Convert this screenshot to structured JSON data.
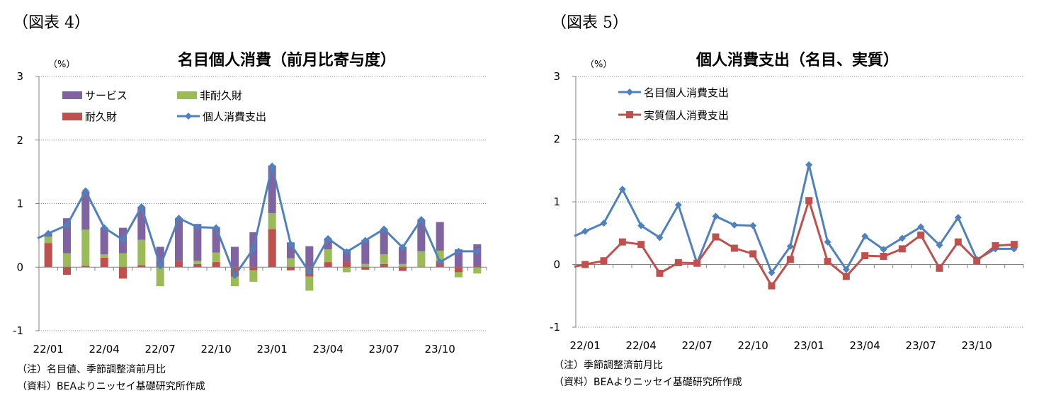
{
  "figures": [
    {
      "figure_label": "（図表 4）",
      "notes": [
        "（注）名目値、季節調整済前月比",
        "（資料）BEAよりニッセイ基礎研究所作成"
      ]
    },
    {
      "figure_label": "（図表 5）",
      "notes": [
        "（注）季節調整済前月比",
        "（資料）BEAよりニッセイ基礎研究所作成"
      ]
    }
  ],
  "chart_data": [
    {
      "type": "bar",
      "stacked": true,
      "title": "名目個人消費（前月比寄与度）",
      "ylabel": "（%）",
      "ylim": [
        -1,
        3
      ],
      "yticks": [
        -1,
        0,
        1,
        2,
        3
      ],
      "grid": true,
      "legend_position": "top-left",
      "x": [
        "22/01",
        "22/02",
        "22/03",
        "22/04",
        "22/05",
        "22/06",
        "22/07",
        "22/08",
        "22/09",
        "22/10",
        "22/11",
        "22/12",
        "23/01",
        "23/02",
        "23/03",
        "23/04",
        "23/05",
        "23/06",
        "23/07",
        "23/08",
        "23/09",
        "23/10",
        "23/11",
        "23/12"
      ],
      "xtick_labels": [
        "22/01",
        "22/04",
        "22/07",
        "22/10",
        "23/01",
        "23/04",
        "23/07",
        "23/10"
      ],
      "series": [
        {
          "name": "耐久財",
          "type": "bar",
          "color": "#C0504D",
          "values": [
            0.38,
            -0.12,
            0.02,
            0.15,
            -0.18,
            0.03,
            0.0,
            0.1,
            0.05,
            0.08,
            -0.15,
            -0.05,
            0.6,
            -0.05,
            -0.15,
            0.08,
            0.08,
            -0.04,
            0.05,
            -0.06,
            0.0,
            0.1,
            -0.08,
            0.02
          ]
        },
        {
          "name": "非耐久財",
          "type": "bar",
          "color": "#9BBB59",
          "values": [
            0.1,
            0.22,
            0.57,
            0.05,
            0.22,
            0.4,
            -0.3,
            0.0,
            0.05,
            0.15,
            -0.15,
            -0.18,
            0.25,
            0.14,
            -0.22,
            0.2,
            -0.08,
            0.05,
            0.15,
            0.05,
            0.25,
            0.16,
            -0.08,
            -0.1
          ]
        },
        {
          "name": "サービス",
          "type": "bar",
          "color": "#8064A2",
          "values": [
            0.05,
            0.55,
            0.6,
            0.42,
            0.4,
            0.52,
            0.32,
            0.67,
            0.58,
            0.4,
            0.32,
            0.55,
            0.75,
            0.25,
            0.33,
            0.17,
            0.2,
            0.38,
            0.4,
            0.27,
            0.5,
            0.45,
            0.28,
            0.34
          ]
        },
        {
          "name": "個人消費支出",
          "type": "line",
          "color": "#4F81BD",
          "values": [
            0.53,
            0.66,
            1.2,
            0.62,
            0.43,
            0.95,
            0.02,
            0.77,
            0.63,
            0.62,
            -0.13,
            0.29,
            1.59,
            0.36,
            -0.08,
            0.45,
            0.24,
            0.42,
            0.6,
            0.31,
            0.75,
            0.08,
            0.25,
            0.25
          ]
        }
      ]
    },
    {
      "type": "line",
      "title": "個人消費支出（名目、実質）",
      "ylabel": "（%）",
      "ylim": [
        -1,
        3
      ],
      "yticks": [
        -1,
        0,
        1,
        2,
        3
      ],
      "grid": true,
      "legend_position": "top-left",
      "x": [
        "22/01",
        "22/02",
        "22/03",
        "22/04",
        "22/05",
        "22/06",
        "22/07",
        "22/08",
        "22/09",
        "22/10",
        "22/11",
        "22/12",
        "23/01",
        "23/02",
        "23/03",
        "23/04",
        "23/05",
        "23/06",
        "23/07",
        "23/08",
        "23/09",
        "23/10",
        "23/11",
        "23/12"
      ],
      "xtick_labels": [
        "22/01",
        "22/04",
        "22/07",
        "22/10",
        "23/01",
        "23/04",
        "23/07",
        "23/10"
      ],
      "series": [
        {
          "name": "名目個人消費支出",
          "color": "#4F81BD",
          "marker": "diamond",
          "values": [
            0.53,
            0.66,
            1.2,
            0.62,
            0.43,
            0.95,
            0.02,
            0.77,
            0.63,
            0.62,
            -0.13,
            0.29,
            1.59,
            0.36,
            -0.08,
            0.45,
            0.24,
            0.42,
            0.6,
            0.31,
            0.75,
            0.08,
            0.25,
            0.25
          ]
        },
        {
          "name": "実質個人消費支出",
          "color": "#C0504D",
          "marker": "square",
          "values": [
            0.0,
            0.06,
            0.36,
            0.32,
            -0.14,
            0.03,
            0.02,
            0.44,
            0.26,
            0.17,
            -0.34,
            0.08,
            1.02,
            0.05,
            -0.19,
            0.14,
            0.13,
            0.25,
            0.47,
            -0.06,
            0.36,
            0.06,
            0.3,
            0.32
          ]
        }
      ]
    }
  ]
}
